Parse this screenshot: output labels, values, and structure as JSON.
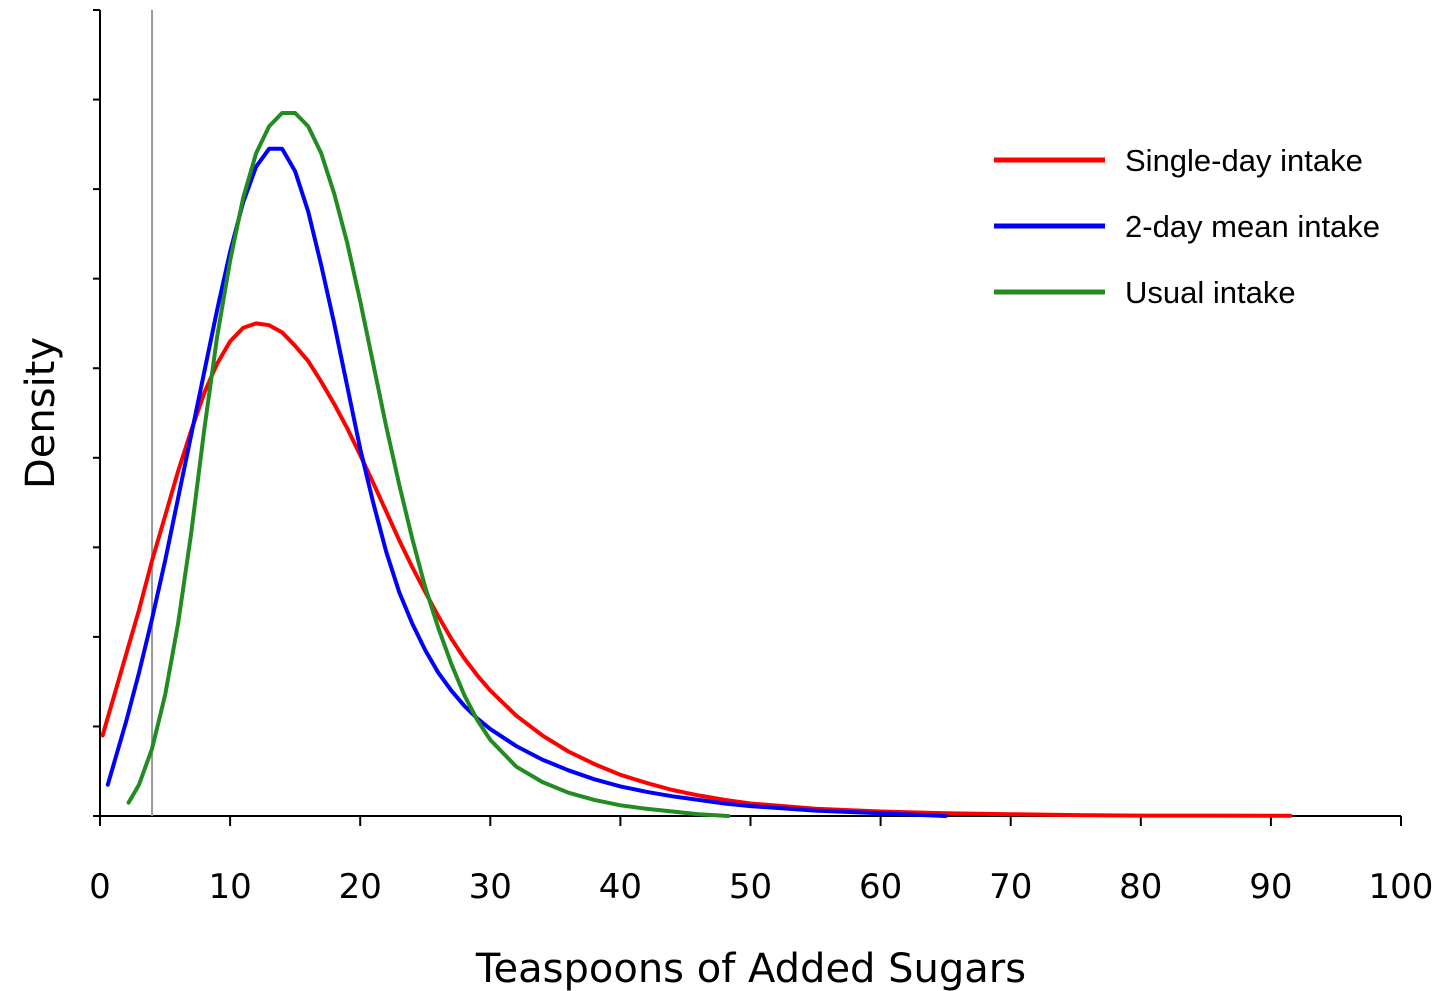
{
  "chart_data": {
    "type": "line",
    "title": "",
    "xlabel": "Teaspoons of Added Sugars",
    "ylabel": "Density",
    "xlim": [
      0,
      100
    ],
    "ylim": [
      0,
      9
    ],
    "x_ticks": [
      "0",
      "10",
      "20",
      "30",
      "40",
      "50",
      "60",
      "70",
      "80",
      "90",
      "100"
    ],
    "y_tick_count": 10,
    "y_tick_labels_shown": false,
    "grid": false,
    "legend_position": "top-right",
    "reference_line_x": 4,
    "series": [
      {
        "name": "Single-day intake",
        "color": "#ff0000",
        "points": [
          [
            0.2,
            0.9
          ],
          [
            1,
            1.3
          ],
          [
            2,
            1.8
          ],
          [
            3,
            2.3
          ],
          [
            4,
            2.85
          ],
          [
            5,
            3.35
          ],
          [
            6,
            3.85
          ],
          [
            7,
            4.3
          ],
          [
            8,
            4.72
          ],
          [
            9,
            5.05
          ],
          [
            10,
            5.3
          ],
          [
            11,
            5.45
          ],
          [
            12,
            5.5
          ],
          [
            13,
            5.48
          ],
          [
            14,
            5.4
          ],
          [
            15,
            5.25
          ],
          [
            16,
            5.08
          ],
          [
            17,
            4.85
          ],
          [
            18,
            4.6
          ],
          [
            19,
            4.33
          ],
          [
            20,
            4.03
          ],
          [
            21,
            3.72
          ],
          [
            22,
            3.4
          ],
          [
            23,
            3.08
          ],
          [
            24,
            2.78
          ],
          [
            25,
            2.5
          ],
          [
            26,
            2.23
          ],
          [
            27,
            1.98
          ],
          [
            28,
            1.76
          ],
          [
            29,
            1.57
          ],
          [
            30,
            1.4
          ],
          [
            32,
            1.12
          ],
          [
            34,
            0.9
          ],
          [
            36,
            0.72
          ],
          [
            38,
            0.58
          ],
          [
            40,
            0.46
          ],
          [
            42,
            0.37
          ],
          [
            44,
            0.29
          ],
          [
            46,
            0.23
          ],
          [
            48,
            0.18
          ],
          [
            50,
            0.14
          ],
          [
            55,
            0.08
          ],
          [
            60,
            0.05
          ],
          [
            65,
            0.03
          ],
          [
            70,
            0.02
          ],
          [
            75,
            0.01
          ],
          [
            80,
            0.005
          ],
          [
            85,
            0.004
          ],
          [
            91.5,
            0.002
          ]
        ]
      },
      {
        "name": "2-day mean intake",
        "color": "#0000ff",
        "points": [
          [
            0.6,
            0.35
          ],
          [
            1,
            0.55
          ],
          [
            2,
            1.05
          ],
          [
            3,
            1.6
          ],
          [
            4,
            2.2
          ],
          [
            5,
            2.85
          ],
          [
            6,
            3.55
          ],
          [
            7,
            4.25
          ],
          [
            8,
            4.95
          ],
          [
            9,
            5.65
          ],
          [
            10,
            6.3
          ],
          [
            11,
            6.85
          ],
          [
            12,
            7.25
          ],
          [
            13,
            7.45
          ],
          [
            14,
            7.45
          ],
          [
            15,
            7.2
          ],
          [
            16,
            6.75
          ],
          [
            17,
            6.15
          ],
          [
            18,
            5.5
          ],
          [
            19,
            4.8
          ],
          [
            20,
            4.1
          ],
          [
            21,
            3.5
          ],
          [
            22,
            2.95
          ],
          [
            23,
            2.5
          ],
          [
            24,
            2.15
          ],
          [
            25,
            1.85
          ],
          [
            26,
            1.6
          ],
          [
            27,
            1.4
          ],
          [
            28,
            1.23
          ],
          [
            29,
            1.09
          ],
          [
            30,
            0.97
          ],
          [
            32,
            0.78
          ],
          [
            34,
            0.63
          ],
          [
            36,
            0.51
          ],
          [
            38,
            0.41
          ],
          [
            40,
            0.33
          ],
          [
            42,
            0.27
          ],
          [
            44,
            0.22
          ],
          [
            46,
            0.18
          ],
          [
            48,
            0.14
          ],
          [
            50,
            0.11
          ],
          [
            55,
            0.06
          ],
          [
            60,
            0.03
          ],
          [
            65,
            0.0
          ]
        ]
      },
      {
        "name": "Usual intake",
        "color": "#228b22",
        "points": [
          [
            2.2,
            0.15
          ],
          [
            3,
            0.35
          ],
          [
            4,
            0.75
          ],
          [
            5,
            1.35
          ],
          [
            6,
            2.15
          ],
          [
            7,
            3.15
          ],
          [
            8,
            4.3
          ],
          [
            9,
            5.35
          ],
          [
            10,
            6.2
          ],
          [
            11,
            6.9
          ],
          [
            12,
            7.4
          ],
          [
            13,
            7.7
          ],
          [
            14,
            7.85
          ],
          [
            15,
            7.85
          ],
          [
            16,
            7.7
          ],
          [
            17,
            7.4
          ],
          [
            18,
            6.95
          ],
          [
            19,
            6.4
          ],
          [
            20,
            5.75
          ],
          [
            21,
            5.05
          ],
          [
            22,
            4.35
          ],
          [
            23,
            3.7
          ],
          [
            24,
            3.1
          ],
          [
            25,
            2.55
          ],
          [
            26,
            2.1
          ],
          [
            27,
            1.7
          ],
          [
            28,
            1.35
          ],
          [
            29,
            1.07
          ],
          [
            30,
            0.85
          ],
          [
            32,
            0.55
          ],
          [
            34,
            0.38
          ],
          [
            36,
            0.26
          ],
          [
            38,
            0.18
          ],
          [
            40,
            0.12
          ],
          [
            42,
            0.08
          ],
          [
            44,
            0.05
          ],
          [
            46,
            0.02
          ],
          [
            48.3,
            0.0
          ]
        ]
      }
    ]
  }
}
